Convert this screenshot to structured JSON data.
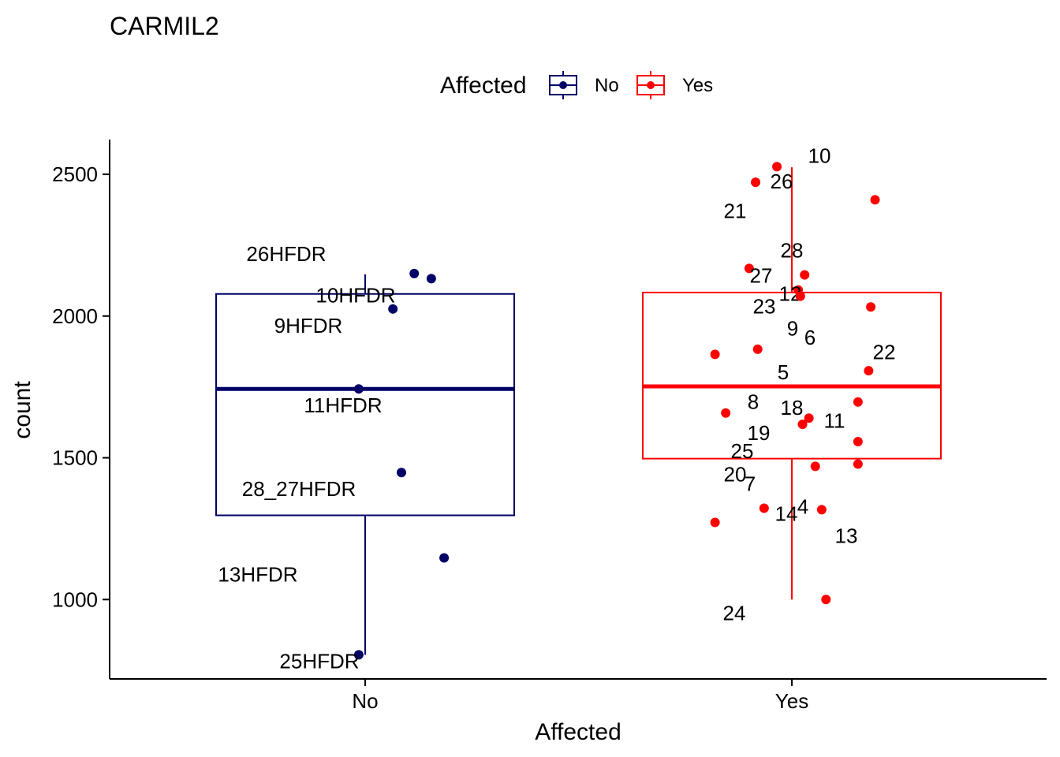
{
  "chart_data": {
    "type": "boxplot",
    "title": "CARMIL2",
    "xlabel": "Affected",
    "ylabel": "count",
    "categories": [
      "No",
      "Yes"
    ],
    "yticks": [
      1000,
      1500,
      2000,
      2500
    ],
    "ylim": [
      720,
      2610
    ],
    "legend": {
      "title": "Affected",
      "position": "top",
      "entries": [
        {
          "label": "No",
          "color": "#000066"
        },
        {
          "label": "Yes",
          "color": "#ff0000"
        }
      ]
    },
    "series": [
      {
        "name": "No",
        "color": "#000066",
        "box": {
          "whisker_low": 805,
          "q1": 1297,
          "median": 1743,
          "q3": 2078,
          "whisker_high": 2147
        },
        "points": [
          {
            "label": "26HFDR",
            "y": 2150,
            "jitter": 0.115
          },
          {
            "label": "10HFDR",
            "y": 2132,
            "jitter": 0.155
          },
          {
            "label": "9HFDR",
            "y": 2025,
            "jitter": 0.065
          },
          {
            "label": "11HFDR",
            "y": 1743,
            "jitter": -0.015
          },
          {
            "label": "28_27HFDR",
            "y": 1448,
            "jitter": 0.085
          },
          {
            "label": "13HFDR",
            "y": 1147,
            "jitter": 0.185
          },
          {
            "label": "25HFDR",
            "y": 805,
            "jitter": -0.015
          }
        ]
      },
      {
        "name": "Yes",
        "color": "#ff0000",
        "box": {
          "whisker_low": 1000,
          "q1": 1497,
          "median": 1752,
          "q3": 2083,
          "whisker_high": 2525
        },
        "points": [
          {
            "label": "10",
            "y": 2527,
            "jitter": -0.035
          },
          {
            "label": "26",
            "y": 2472,
            "jitter": -0.085
          },
          {
            "label": "21",
            "y": 2410,
            "jitter": 0.195
          },
          {
            "label": "28",
            "y": 2145,
            "jitter": 0.03
          },
          {
            "label": "27",
            "y": 2168,
            "jitter": -0.1
          },
          {
            "label": "12",
            "y": 2092,
            "jitter": 0.015
          },
          {
            "label": "23",
            "y": 2070,
            "jitter": 0.02
          },
          {
            "label": "9",
            "y": 2032,
            "jitter": 0.185
          },
          {
            "label": "6",
            "y": 1883,
            "jitter": -0.08
          },
          {
            "label": "22",
            "y": 1865,
            "jitter": -0.18
          },
          {
            "label": "5",
            "y": 1807,
            "jitter": 0.18
          },
          {
            "label": "8",
            "y": 1697,
            "jitter": 0.155
          },
          {
            "label": "11",
            "y": 1658,
            "jitter": -0.155
          },
          {
            "label": "18",
            "y": 1640,
            "jitter": 0.04
          },
          {
            "label": "19",
            "y": 1618,
            "jitter": 0.025
          },
          {
            "label": "25",
            "y": 1557,
            "jitter": 0.155
          },
          {
            "label": "7",
            "y": 1470,
            "jitter": 0.055
          },
          {
            "label": "20",
            "y": 1478,
            "jitter": 0.155
          },
          {
            "label": "4",
            "y": 1322,
            "jitter": -0.065
          },
          {
            "label": "14",
            "y": 1317,
            "jitter": 0.07
          },
          {
            "label": "13",
            "y": 1272,
            "jitter": -0.18
          },
          {
            "label": "24",
            "y": 1000,
            "jitter": 0.08
          }
        ]
      }
    ]
  }
}
